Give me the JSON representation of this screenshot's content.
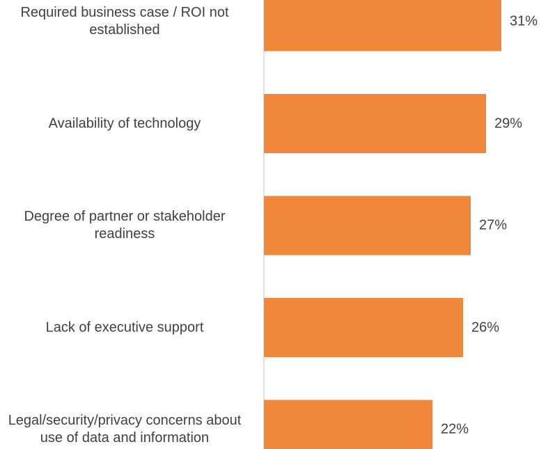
{
  "chart_data": {
    "type": "bar",
    "orientation": "horizontal",
    "categories": [
      "Required business case / ROI not established",
      "Availability of technology",
      "Degree of partner or stakeholder readiness",
      "Lack of executive support",
      "Legal/security/privacy concerns about use of data and information"
    ],
    "values": [
      31,
      29,
      27,
      26,
      22
    ],
    "value_labels": [
      "31%",
      "29%",
      "27%",
      "26%",
      "22%"
    ],
    "bar_color": "#F0873A",
    "axis_color": "#D9D9D9",
    "text_color": "#404040",
    "xlim": [
      0,
      31
    ],
    "grid": false
  }
}
